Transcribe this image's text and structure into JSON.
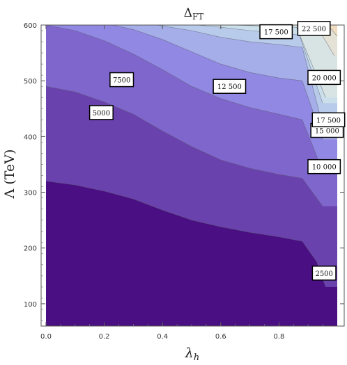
{
  "chart_data": {
    "type": "contour",
    "title_main": "Δ",
    "title_sub": "FT",
    "xlabel_main": "λ",
    "xlabel_sub": "h",
    "ylabel": "Λ (TeV)",
    "xlim": [
      0.0,
      1.0
    ],
    "ylim": [
      60,
      600
    ],
    "x_ticks": [
      0.0,
      0.2,
      0.4,
      0.6,
      0.8
    ],
    "x_tick_labels": [
      "0.0",
      "0.2",
      "0.4",
      "0.6",
      "0.8"
    ],
    "y_ticks": [
      100,
      200,
      300,
      400,
      500,
      600
    ],
    "y_tick_labels": [
      "100",
      "200",
      "300",
      "400",
      "500",
      "600"
    ],
    "contour_levels": [
      2500,
      5000,
      7500,
      10000,
      12500,
      15000,
      17500,
      20000,
      22500
    ],
    "fill_colors": [
      "#4a0f82",
      "#6a42ad",
      "#7f66cc",
      "#9088e3",
      "#a5aee9",
      "#b8cbeb",
      "#cadfe9",
      "#d8e3e3",
      "#e4e2d6",
      "#efdcc0"
    ],
    "contours": [
      {
        "level": 2500,
        "x": [
          0.0,
          0.1,
          0.2,
          0.3,
          0.4,
          0.5,
          0.6,
          0.7,
          0.8,
          0.88,
          0.93,
          0.96
        ],
        "y": [
          320,
          313,
          302,
          288,
          268,
          250,
          238,
          228,
          220,
          212,
          175,
          130
        ]
      },
      {
        "level": 5000,
        "x": [
          0.0,
          0.1,
          0.2,
          0.3,
          0.4,
          0.5,
          0.6,
          0.7,
          0.8,
          0.88,
          0.95
        ],
        "y": [
          490,
          480,
          462,
          440,
          410,
          382,
          358,
          343,
          332,
          325,
          275
        ]
      },
      {
        "level": 7500,
        "x": [
          0.0,
          0.1,
          0.2,
          0.3,
          0.4,
          0.5,
          0.6,
          0.7,
          0.8,
          0.88,
          0.95
        ],
        "y": [
          600,
          590,
          572,
          548,
          520,
          490,
          468,
          452,
          440,
          430,
          338
        ]
      },
      {
        "level": 10000,
        "x": [
          0.23,
          0.3,
          0.4,
          0.5,
          0.6,
          0.7,
          0.8,
          0.88,
          0.95
        ],
        "y": [
          600,
          592,
          574,
          552,
          530,
          515,
          505,
          500,
          395
        ]
      },
      {
        "level": 12500,
        "x": [
          0.38,
          0.5,
          0.6,
          0.7,
          0.8,
          0.88,
          0.95
        ],
        "y": [
          600,
          590,
          578,
          570,
          565,
          560,
          420
        ]
      },
      {
        "level": 15000,
        "x": [
          0.52,
          0.6,
          0.7,
          0.8,
          0.87,
          0.95
        ],
        "y": [
          600,
          596,
          590,
          586,
          582,
          460
        ]
      },
      {
        "level": 17500,
        "x": [
          0.63,
          0.7,
          0.8,
          0.86,
          0.96
        ],
        "y": [
          600,
          599,
          597,
          596,
          470
        ]
      },
      {
        "level": 20000,
        "x": [
          0.88,
          0.93,
          0.99
        ],
        "y": [
          600,
          598,
          545
        ]
      },
      {
        "level": 22500,
        "x": [
          0.94,
          0.97,
          1.0
        ],
        "y": [
          600,
          598,
          580
        ]
      }
    ],
    "contour_labels": [
      {
        "text": "2500",
        "x": 0.955,
        "y": 155
      },
      {
        "text": "5000",
        "x": 0.19,
        "y": 443
      },
      {
        "text": "7500",
        "x": 0.26,
        "y": 502
      },
      {
        "text": "10 000",
        "x": 0.955,
        "y": 346
      },
      {
        "text": "12 500",
        "x": 0.63,
        "y": 490
      },
      {
        "text": "15 000",
        "x": 0.965,
        "y": 411
      },
      {
        "text": "17 500",
        "x": 0.97,
        "y": 430
      },
      {
        "text": "17 500",
        "x": 0.79,
        "y": 588
      },
      {
        "text": "20 000",
        "x": 0.955,
        "y": 506
      },
      {
        "text": "22 500",
        "x": 0.92,
        "y": 594
      }
    ]
  }
}
